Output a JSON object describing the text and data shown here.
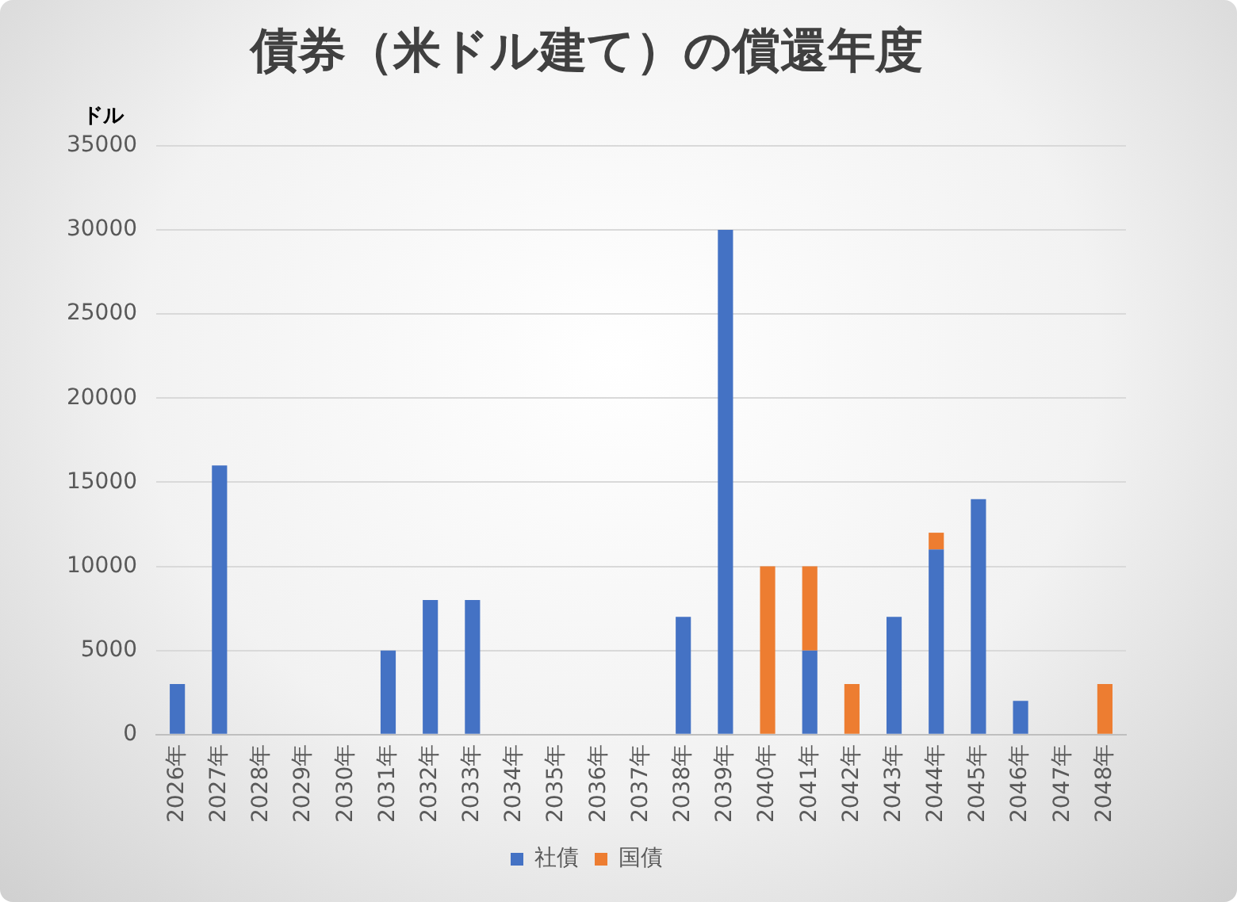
{
  "chart_data": {
    "type": "bar",
    "title": "債券（米ドル建て）の償還年度",
    "ylabel": "ドル",
    "categories": [
      "2026年",
      "2027年",
      "2028年",
      "2029年",
      "2030年",
      "2031年",
      "2032年",
      "2033年",
      "2034年",
      "2035年",
      "2036年",
      "2037年",
      "2038年",
      "2039年",
      "2040年",
      "2041年",
      "2042年",
      "2043年",
      "2044年",
      "2045年",
      "2046年",
      "2047年",
      "2048年"
    ],
    "series": [
      {
        "name": "社債",
        "color": "#4472c4",
        "values": [
          3000,
          16000,
          0,
          0,
          0,
          5000,
          8000,
          8000,
          0,
          0,
          0,
          0,
          7000,
          30000,
          0,
          5000,
          0,
          7000,
          11000,
          14000,
          2000,
          0,
          0
        ]
      },
      {
        "name": "国債",
        "color": "#ed7d31",
        "values": [
          0,
          0,
          0,
          0,
          0,
          0,
          0,
          0,
          0,
          0,
          0,
          0,
          0,
          0,
          10000,
          5000,
          3000,
          0,
          1000,
          0,
          0,
          0,
          3000
        ]
      }
    ],
    "stacked": true,
    "ylim": [
      0,
      35000
    ],
    "yticks": [
      0,
      5000,
      10000,
      15000,
      20000,
      25000,
      30000,
      35000
    ],
    "grid": "y",
    "legend": "bottom"
  }
}
